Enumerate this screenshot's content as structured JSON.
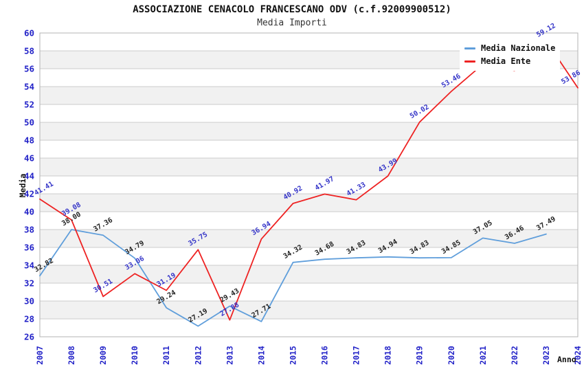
{
  "chart_data": {
    "type": "line",
    "title": "ASSOCIAZIONE CENACOLO FRANCESCANO ODV (c.f.92009900512)",
    "subtitle": "Media Importi",
    "xlabel": "Anno",
    "ylabel": "Media",
    "ylim": [
      26,
      60
    ],
    "yticks": [
      26,
      28,
      30,
      32,
      34,
      36,
      38,
      40,
      42,
      44,
      46,
      48,
      50,
      52,
      54,
      56,
      58,
      60
    ],
    "categories": [
      "2007",
      "2008",
      "2009",
      "2010",
      "2011",
      "2012",
      "2013",
      "2014",
      "2015",
      "2016",
      "2017",
      "2018",
      "2019",
      "2020",
      "2021",
      "2022",
      "2023",
      "2024"
    ],
    "series": [
      {
        "name": "Media Nazionale",
        "color": "#5f9edb",
        "label_color": "#222222",
        "values": [
          32.82,
          38.0,
          37.36,
          34.79,
          29.24,
          27.19,
          29.43,
          27.71,
          34.32,
          34.68,
          34.83,
          34.94,
          34.83,
          34.85,
          37.05,
          36.46,
          37.49,
          null
        ]
      },
      {
        "name": "Media Ente",
        "color": "#ee2222",
        "label_color": "#3535c8",
        "values": [
          41.41,
          39.08,
          30.51,
          33.06,
          31.19,
          35.75,
          27.88,
          36.94,
          40.92,
          41.97,
          41.33,
          43.99,
          50.02,
          53.46,
          56.5,
          55.8,
          59.12,
          53.86
        ]
      }
    ],
    "legend_position": "top-right",
    "grid": "horizontal-bands",
    "colors": {
      "axis_labels": "#2323c8",
      "band_fill": "#f1f1f1",
      "grid_line": "#cccccc",
      "plot_border": "#b3b3b3"
    }
  }
}
